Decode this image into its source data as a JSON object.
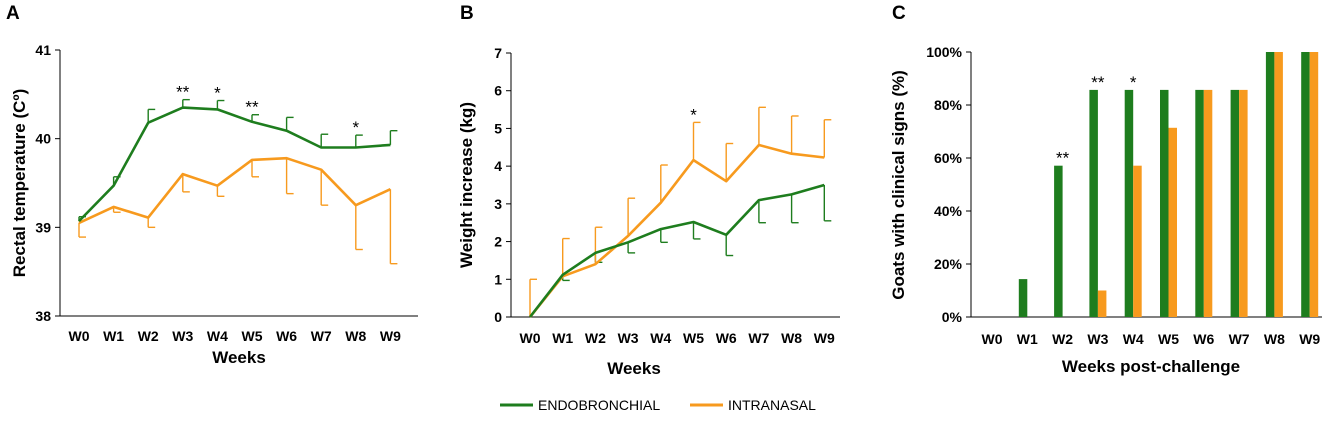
{
  "colors": {
    "endobronchial": "#1e7d1e",
    "intranasal": "#f79a1e",
    "axis": "#000000"
  },
  "legend": [
    {
      "name": "ENDOBRONCHIAL",
      "color": "#1e7d1e"
    },
    {
      "name": "INTRANASAL",
      "color": "#f79a1e"
    }
  ],
  "chart_data": [
    {
      "panel": "A",
      "type": "line",
      "categories": [
        "W0",
        "W1",
        "W2",
        "W3",
        "W4",
        "W5",
        "W6",
        "W7",
        "W8",
        "W9"
      ],
      "ylabel": "Rectal temperature (Cº)",
      "xlabel": "Weeks",
      "ylim": [
        38,
        41
      ],
      "yticks": [
        "38",
        "39",
        "40",
        "41"
      ],
      "ytick_values": [
        38,
        39,
        40,
        41
      ],
      "series": [
        {
          "name": "ENDOBRONCHIAL",
          "color": "#1e7d1e",
          "values": [
            39.07,
            39.47,
            40.18,
            40.35,
            40.33,
            40.19,
            40.09,
            39.9,
            39.9,
            39.93
          ],
          "error": [
            0.05,
            0.1,
            0.15,
            0.09,
            0.1,
            0.08,
            0.15,
            0.15,
            0.14,
            0.16
          ],
          "error_dir": "up"
        },
        {
          "name": "INTRANASAL",
          "color": "#f79a1e",
          "values": [
            39.05,
            39.23,
            39.11,
            39.6,
            39.47,
            39.76,
            39.78,
            39.65,
            39.25,
            39.43
          ],
          "error": [
            0.16,
            0.06,
            0.11,
            0.2,
            0.12,
            0.19,
            0.4,
            0.4,
            0.5,
            0.84
          ],
          "error_dir": "down"
        }
      ],
      "annotations": [
        {
          "text": "**",
          "category": "W3"
        },
        {
          "text": "*",
          "category": "W4"
        },
        {
          "text": "**",
          "category": "W5"
        },
        {
          "text": "*",
          "category": "W8"
        }
      ]
    },
    {
      "panel": "B",
      "type": "line",
      "categories": [
        "W0",
        "W1",
        "W2",
        "W3",
        "W4",
        "W5",
        "W6",
        "W7",
        "W8",
        "W9"
      ],
      "ylabel": "Weight increase (kg)",
      "xlabel": "Weeks",
      "ylim": [
        0,
        7
      ],
      "yticks": [
        "0",
        "1",
        "2",
        "3",
        "4",
        "5",
        "6",
        "7"
      ],
      "ytick_values": [
        0,
        1,
        2,
        3,
        4,
        5,
        6,
        7
      ],
      "series": [
        {
          "name": "ENDOBRONCHIAL",
          "color": "#1e7d1e",
          "values": [
            0.0,
            1.12,
            1.7,
            1.98,
            2.33,
            2.52,
            2.18,
            3.1,
            3.25,
            3.5
          ],
          "error": [
            0.0,
            0.15,
            0.25,
            0.28,
            0.35,
            0.45,
            0.55,
            0.6,
            0.75,
            0.95
          ],
          "error_dir": "down"
        },
        {
          "name": "INTRANASAL",
          "color": "#f79a1e",
          "values": [
            0.0,
            1.08,
            1.4,
            2.15,
            3.03,
            4.16,
            3.6,
            4.56,
            4.33,
            4.23
          ],
          "error": [
            1.0,
            1.0,
            0.98,
            1.0,
            1.0,
            1.0,
            1.0,
            1.0,
            1.0,
            1.0
          ],
          "error_dir": "up"
        }
      ],
      "annotations": [
        {
          "text": "*",
          "category": "W5"
        }
      ]
    },
    {
      "panel": "C",
      "type": "bar",
      "categories": [
        "W0",
        "W1",
        "W2",
        "W3",
        "W4",
        "W5",
        "W6",
        "W7",
        "W8",
        "W9"
      ],
      "ylabel": "Goats with clinical signs (%)",
      "xlabel": "Weeks post-challenge",
      "ylim": [
        0,
        100
      ],
      "yticks": [
        "0%",
        "20%",
        "40%",
        "60%",
        "80%",
        "100%"
      ],
      "ytick_values": [
        0,
        20,
        40,
        60,
        80,
        100
      ],
      "series": [
        {
          "name": "ENDOBRONCHIAL",
          "color": "#1e7d1e",
          "values": [
            0,
            14.3,
            57.1,
            85.7,
            85.7,
            85.7,
            85.7,
            85.7,
            100,
            100
          ]
        },
        {
          "name": "INTRANASAL",
          "color": "#f79a1e",
          "values": [
            0,
            0,
            0,
            10,
            57.1,
            71.4,
            85.7,
            85.7,
            100,
            100
          ]
        }
      ],
      "annotations": [
        {
          "text": "**",
          "category": "W2"
        },
        {
          "text": "**",
          "category": "W3"
        },
        {
          "text": "*",
          "category": "W4"
        }
      ]
    }
  ]
}
